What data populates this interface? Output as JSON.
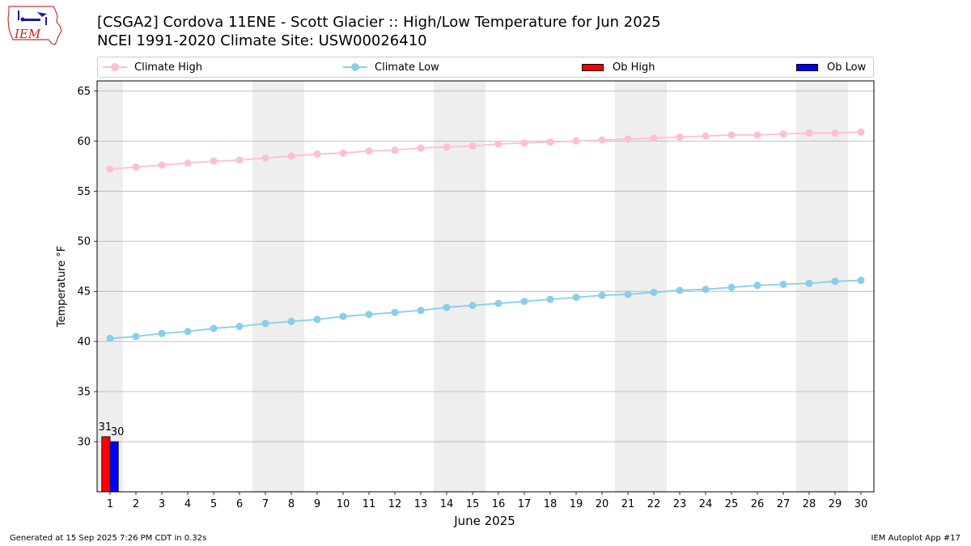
{
  "logo": {
    "text": "IEM"
  },
  "header": {
    "title_line1": "[CSGA2] Cordova 11ENE - Scott Glacier :: High/Low Temperature for Jun 2025",
    "title_line2": "NCEI 1991-2020 Climate Site: USW00026410"
  },
  "legend": {
    "placement": "top, horizontal",
    "items": [
      {
        "label": "Climate High",
        "kind": "line",
        "color": "#ffc0cb"
      },
      {
        "label": "Climate Low",
        "kind": "line",
        "color": "#87ceeb"
      },
      {
        "label": "Ob High",
        "kind": "bar",
        "color": "#ff0000"
      },
      {
        "label": "Ob Low",
        "kind": "bar",
        "color": "#0000ff"
      }
    ]
  },
  "chart_data": {
    "type": "line",
    "xlabel": "June 2025",
    "ylabel": "Temperature °F",
    "xlim": [
      0.5,
      30.5
    ],
    "ylim": [
      25,
      66
    ],
    "yticks": [
      30,
      35,
      40,
      45,
      50,
      55,
      60,
      65
    ],
    "x": [
      1,
      2,
      3,
      4,
      5,
      6,
      7,
      8,
      9,
      10,
      11,
      12,
      13,
      14,
      15,
      16,
      17,
      18,
      19,
      20,
      21,
      22,
      23,
      24,
      25,
      26,
      27,
      28,
      29,
      30
    ],
    "grid": "horizontal",
    "weekend_shading": [
      [
        0.5,
        1.5
      ],
      [
        6.5,
        8.5
      ],
      [
        13.5,
        15.5
      ],
      [
        20.5,
        22.5
      ],
      [
        27.5,
        29.5
      ]
    ],
    "series": [
      {
        "name": "Climate High",
        "type": "line",
        "color": "#ffc0cb",
        "values": [
          57.2,
          57.4,
          57.6,
          57.8,
          58.0,
          58.1,
          58.3,
          58.5,
          58.7,
          58.8,
          59.0,
          59.1,
          59.3,
          59.4,
          59.5,
          59.7,
          59.8,
          59.9,
          60.0,
          60.1,
          60.2,
          60.3,
          60.4,
          60.5,
          60.6,
          60.6,
          60.7,
          60.8,
          60.8,
          60.9
        ]
      },
      {
        "name": "Climate Low",
        "type": "line",
        "color": "#87ceeb",
        "values": [
          40.3,
          40.5,
          40.8,
          41.0,
          41.3,
          41.5,
          41.8,
          42.0,
          42.2,
          42.5,
          42.7,
          42.9,
          43.1,
          43.4,
          43.6,
          43.8,
          44.0,
          44.2,
          44.4,
          44.6,
          44.7,
          44.9,
          45.1,
          45.2,
          45.4,
          45.6,
          45.7,
          45.8,
          46.0,
          46.1
        ]
      },
      {
        "name": "Ob High",
        "type": "bar",
        "color": "#ff0000",
        "x": [
          1
        ],
        "values": [
          30.5
        ],
        "labels": [
          "31"
        ]
      },
      {
        "name": "Ob Low",
        "type": "bar",
        "color": "#0000ff",
        "x": [
          1
        ],
        "values": [
          30.0
        ],
        "labels": [
          "30"
        ]
      }
    ]
  },
  "footer": {
    "generated": "Generated at 15 Sep 2025 7:26 PM CDT in 0.32s",
    "app": "IEM Autoplot App #17"
  }
}
